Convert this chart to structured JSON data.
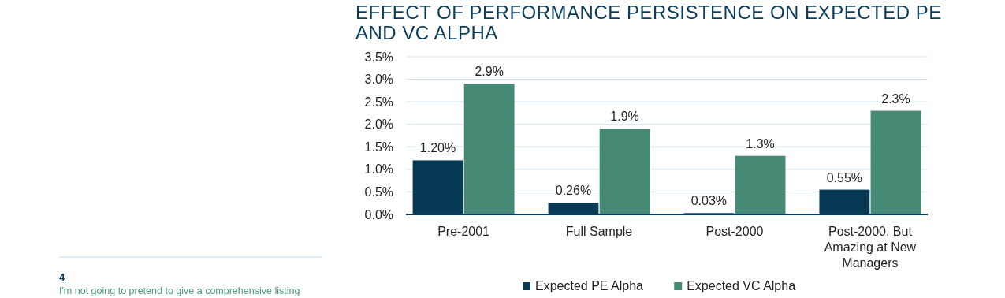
{
  "chart_data": {
    "type": "bar",
    "title": "EFFECT OF PERFORMANCE PERSISTENCE ON EXPECTED PE AND VC ALPHA",
    "categories": [
      "Pre-2001",
      "Full Sample",
      "Post-2000",
      "Post-2000, But Amazing at New Managers"
    ],
    "series": [
      {
        "name": "Expected PE Alpha",
        "color": "#083a56",
        "values": [
          1.2,
          0.26,
          0.03,
          0.55
        ],
        "value_labels": [
          "1.20%",
          "0.26%",
          "0.03%",
          "0.55%"
        ]
      },
      {
        "name": "Expected VC Alpha",
        "color": "#468a76",
        "values": [
          2.9,
          1.9,
          1.3,
          2.3
        ],
        "value_labels": [
          "2.9%",
          "1.9%",
          "1.3%",
          "2.3%"
        ]
      }
    ],
    "ylim": [
      0,
      3.5
    ],
    "yticks": [
      {
        "value": 0,
        "label": "0.0%"
      },
      {
        "value": 0.5,
        "label": "0.5%"
      },
      {
        "value": 1,
        "label": "1.0%"
      },
      {
        "value": 1.5,
        "label": "1.5%"
      },
      {
        "value": 2,
        "label": "2.0%"
      },
      {
        "value": 2.5,
        "label": "2.5%"
      },
      {
        "value": 3,
        "label": "3.0%"
      },
      {
        "value": 3.5,
        "label": "3.5%"
      }
    ],
    "grid": "y",
    "legend": "bottom",
    "annotations": [
      "4",
      "I'm not going to pretend to give a comprehensive listing"
    ]
  }
}
